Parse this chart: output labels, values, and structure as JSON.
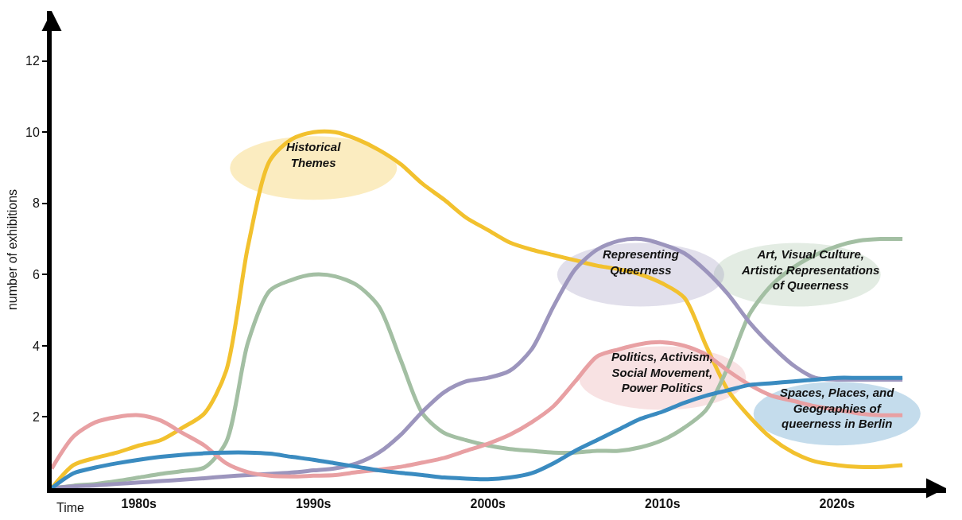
{
  "chart_data": {
    "type": "line",
    "xlabel": "Time",
    "ylabel": "number of exhibitions",
    "categories": [
      null,
      null,
      null,
      null,
      "1980s",
      null,
      null,
      null,
      null,
      null,
      null,
      null,
      "1990s",
      null,
      null,
      null,
      null,
      null,
      null,
      null,
      "2000s",
      null,
      null,
      null,
      null,
      null,
      null,
      null,
      "2010s",
      null,
      null,
      null,
      null,
      null,
      null,
      null,
      "2020s",
      null,
      null,
      null
    ],
    "ylim": [
      0,
      13.4
    ],
    "yticks": [
      2,
      4,
      6,
      8,
      10,
      12
    ],
    "grid": false,
    "legend": false,
    "marker": "none",
    "line_style": "solid",
    "series": [
      {
        "name": "Historical\nThemes",
        "color": "#f2c12e",
        "values": [
          0,
          0.65,
          0.85,
          1.0,
          1.2,
          1.35,
          1.7,
          2.1,
          3.3,
          6.8,
          9.2,
          9.8,
          10.0,
          10.0,
          9.8,
          9.5,
          9.1,
          8.55,
          8.1,
          7.6,
          7.25,
          6.9,
          6.7,
          6.55,
          6.4,
          6.25,
          6.15,
          6.0,
          5.75,
          5.35,
          4.0,
          2.75,
          2.0,
          1.4,
          1.0,
          0.75,
          0.65,
          0.6,
          0.6,
          0.65
        ]
      },
      {
        "name": "Art, Visual Culture,\nArtistic Representations\nof Queerness",
        "color": "#a3bfa3",
        "values": [
          0,
          0.07,
          0.12,
          0.2,
          0.3,
          0.4,
          0.48,
          0.58,
          1.3,
          4.1,
          5.55,
          5.85,
          6.0,
          5.95,
          5.7,
          5.1,
          3.6,
          2.1,
          1.55,
          1.35,
          1.2,
          1.1,
          1.05,
          1.0,
          1.0,
          1.05,
          1.05,
          1.15,
          1.35,
          1.7,
          2.2,
          3.4,
          4.9,
          5.7,
          6.2,
          6.55,
          6.8,
          6.95,
          7.0,
          7.0
        ]
      },
      {
        "name": "Representing\nQueerness",
        "color": "#9c95bd",
        "values": [
          0,
          0.05,
          0.08,
          0.12,
          0.16,
          0.2,
          0.24,
          0.28,
          0.33,
          0.37,
          0.4,
          0.44,
          0.5,
          0.56,
          0.7,
          1.0,
          1.5,
          2.15,
          2.7,
          3.0,
          3.1,
          3.3,
          3.9,
          5.1,
          6.15,
          6.7,
          6.95,
          7.0,
          6.85,
          6.6,
          6.1,
          5.45,
          4.65,
          4.0,
          3.45,
          3.1,
          3.05,
          3.05,
          3.05,
          3.05
        ]
      },
      {
        "name": "Politics, Activism,\nSocial Movement,\nPower Politics",
        "color": "#e8a0a3",
        "values": [
          0.55,
          1.45,
          1.85,
          2.0,
          2.05,
          1.9,
          1.55,
          1.2,
          0.7,
          0.45,
          0.35,
          0.33,
          0.35,
          0.37,
          0.45,
          0.52,
          0.6,
          0.72,
          0.85,
          1.05,
          1.25,
          1.5,
          1.85,
          2.3,
          3.0,
          3.7,
          3.9,
          4.05,
          4.1,
          4.0,
          3.75,
          3.3,
          2.9,
          2.6,
          2.45,
          2.3,
          2.2,
          2.1,
          2.05,
          2.05
        ]
      },
      {
        "name": "Spaces, Places, and\nGeographies of\nqueerness in Berlin",
        "color": "#3a8bc0",
        "values": [
          0,
          0.42,
          0.58,
          0.7,
          0.8,
          0.88,
          0.94,
          0.98,
          1.0,
          1.0,
          0.97,
          0.88,
          0.8,
          0.7,
          0.6,
          0.5,
          0.43,
          0.37,
          0.3,
          0.27,
          0.25,
          0.3,
          0.42,
          0.7,
          1.05,
          1.35,
          1.65,
          1.95,
          2.15,
          2.4,
          2.6,
          2.75,
          2.9,
          2.95,
          3.0,
          3.05,
          3.1,
          3.1,
          3.1,
          3.1
        ]
      }
    ]
  }
}
